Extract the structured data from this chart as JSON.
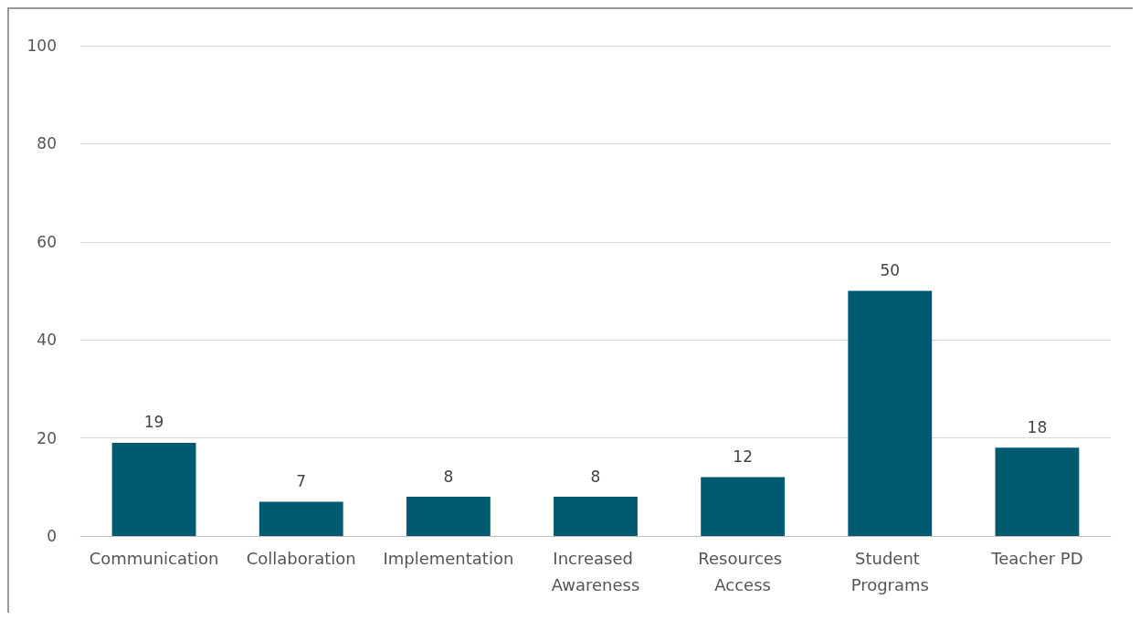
{
  "chart_data": {
    "type": "bar",
    "categories": [
      "Communication",
      "Collaboration",
      "Implementation",
      "Increased Awareness",
      "Resources Access",
      "Student Programs",
      "Teacher PD"
    ],
    "values": [
      19,
      7,
      8,
      8,
      12,
      50,
      18
    ],
    "color": "#005a70",
    "ylim": [
      0,
      100
    ],
    "yticks": [
      0,
      20,
      40,
      60,
      80,
      100
    ],
    "grid": "y",
    "data_labels": true
  }
}
